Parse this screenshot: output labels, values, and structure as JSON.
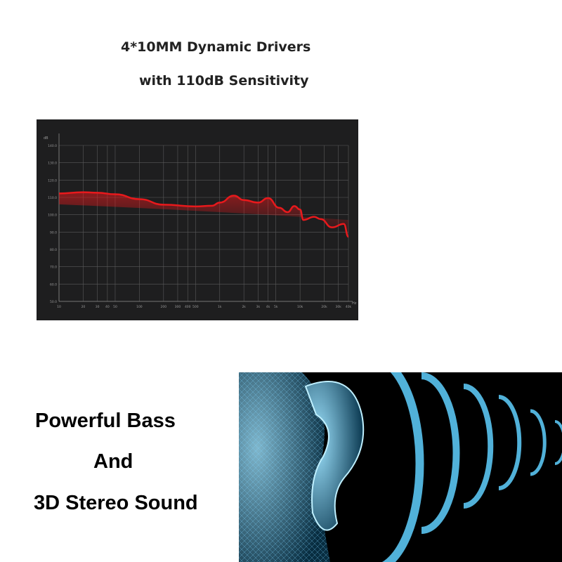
{
  "heading": {
    "line1": "4*10MM Dynamic Drivers",
    "line2": "with 110dB Sensitivity"
  },
  "feature": {
    "line1": "Powerful Bass",
    "line2": "And",
    "line3": "3D Stereo Sound"
  },
  "colors": {
    "curve": "#e8191c",
    "chart_bg": "#1e1e1f",
    "grid": "#5a5a5a",
    "waves": "#5fd0ff"
  },
  "chart_data": {
    "type": "area",
    "x_scale": "log",
    "xlabel": "Hz",
    "ylabel": "dB",
    "xlim": [
      10,
      40000
    ],
    "ylim": [
      50,
      140
    ],
    "grid": true,
    "y_ticks": [
      "140.0",
      "130.0",
      "120.0",
      "110.0",
      "100.0",
      "90.0",
      "80.0",
      "70.0",
      "60.0",
      "50.0"
    ],
    "y_tick_values": [
      140,
      130,
      120,
      110,
      100,
      90,
      80,
      70,
      60,
      50
    ],
    "x_ticks": [
      "10",
      "20",
      "30",
      "40",
      "50",
      "100",
      "200",
      "300",
      "400",
      "500",
      "1k",
      "2k",
      "3k",
      "4k",
      "5k",
      "10k",
      "20k",
      "30k",
      "40k"
    ],
    "x_tick_values": [
      10,
      20,
      30,
      40,
      50,
      100,
      200,
      300,
      400,
      500,
      1000,
      2000,
      3000,
      4000,
      5000,
      10000,
      20000,
      30000,
      40000
    ],
    "series": [
      {
        "x": [
          10,
          20,
          30,
          50,
          100,
          200,
          500,
          800,
          1000,
          1500,
          2000,
          3000,
          4000,
          5500,
          7000,
          8500,
          10000,
          11000,
          15000,
          18000,
          25000,
          35000,
          40000
        ],
        "y": [
          112.3,
          113,
          112.7,
          111.8,
          109,
          105.8,
          104.8,
          105.2,
          107,
          111,
          108.5,
          107,
          109.6,
          104,
          101.5,
          105,
          103,
          97,
          98.8,
          97.5,
          92.7,
          94.7,
          87.3
        ]
      }
    ]
  }
}
